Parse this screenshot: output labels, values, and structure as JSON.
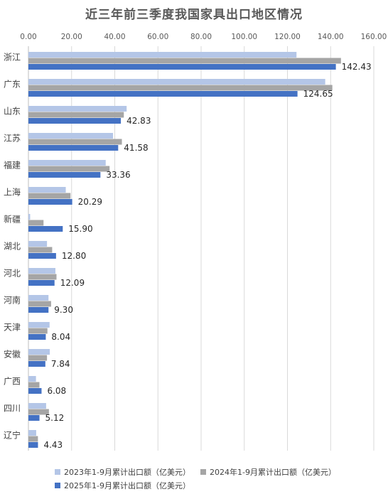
{
  "chart_data": {
    "type": "bar",
    "orientation": "horizontal",
    "title": "近三年前三季度我国家具出口地区情况",
    "categories": [
      "浙江",
      "广东",
      "山东",
      "江苏",
      "福建",
      "上海",
      "新疆",
      "湖北",
      "河北",
      "河南",
      "天津",
      "安徽",
      "广西",
      "四川",
      "辽宁"
    ],
    "series": [
      {
        "name": "2023年1-9月累计出口额（亿美元）",
        "color": "#b4c6e7",
        "values": [
          124.2,
          137.5,
          45.5,
          39.2,
          35.8,
          17.3,
          0.8,
          8.6,
          12.5,
          9.3,
          9.8,
          9.9,
          3.5,
          8.2,
          3.6
        ]
      },
      {
        "name": "2024年1-9月累计出口额（亿美元）",
        "color": "#a5a5a5",
        "values": [
          144.8,
          140.8,
          44.2,
          43.3,
          37.6,
          19.5,
          7.0,
          11.0,
          13.0,
          10.5,
          8.8,
          8.6,
          5.1,
          9.5,
          4.4
        ]
      },
      {
        "name": "2025年1-9月累计出口额（亿美元）",
        "color": "#4472c4",
        "values": [
          142.43,
          124.65,
          42.83,
          41.58,
          33.36,
          20.29,
          15.9,
          12.8,
          12.09,
          9.3,
          8.04,
          7.84,
          6.08,
          5.12,
          4.43
        ],
        "labels": [
          "142.43",
          "124.65",
          "42.83",
          "41.58",
          "33.36",
          "20.29",
          "15.90",
          "12.80",
          "12.09",
          "9.30",
          "8.04",
          "7.84",
          "6.08",
          "5.12",
          "4.43"
        ]
      }
    ],
    "xlim": [
      0,
      160
    ],
    "xticks": [
      "0.00",
      "20.00",
      "40.00",
      "60.00",
      "80.00",
      "100.00",
      "120.00",
      "140.00",
      "160.00"
    ],
    "xtick_values": [
      0,
      20,
      40,
      60,
      80,
      100,
      120,
      140,
      160
    ],
    "grid": "vertical",
    "legend_position": "bottom"
  }
}
